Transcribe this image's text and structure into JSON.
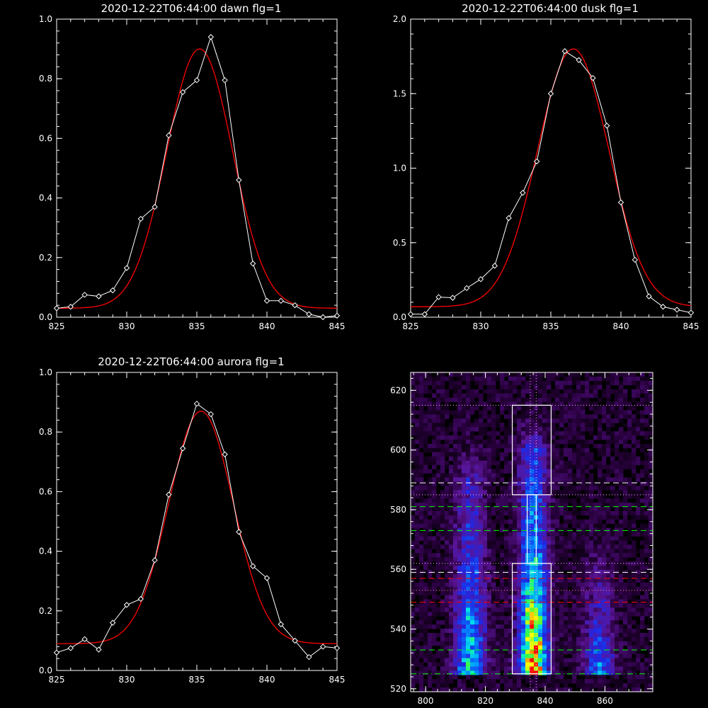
{
  "chart_data": [
    {
      "type": "line",
      "title": "2020-12-22T06:44:00 dawn flg=1",
      "xlim": [
        825,
        845
      ],
      "ylim": [
        0.0,
        1.0
      ],
      "xticks": [
        "825",
        "830",
        "835",
        "840",
        "845"
      ],
      "yticks": [
        "0.0",
        "0.2",
        "0.4",
        "0.6",
        "0.8",
        "1.0"
      ],
      "x": [
        825,
        826,
        827,
        828,
        829,
        830,
        831,
        832,
        833,
        834,
        835,
        836,
        837,
        838,
        839,
        840,
        841,
        842,
        843,
        844,
        845
      ],
      "series": [
        {
          "color": "#ffffff",
          "marker": "diamond",
          "values": [
            0.03,
            0.035,
            0.075,
            0.07,
            0.09,
            0.165,
            0.33,
            0.37,
            0.61,
            0.755,
            0.795,
            0.94,
            0.795,
            0.46,
            0.18,
            0.055,
            0.055,
            0.04,
            0.01,
            0.0,
            0.005
          ]
        },
        {
          "color": "#ff0000",
          "fit": "gaussian",
          "center": 835.2,
          "sigma": 2.35,
          "amplitude": 0.87,
          "baseline": 0.03
        }
      ]
    },
    {
      "type": "line",
      "title": "2020-12-22T06:44:00 dusk flg=1",
      "xlim": [
        825,
        845
      ],
      "ylim": [
        0.0,
        2.0
      ],
      "xticks": [
        "825",
        "830",
        "835",
        "840",
        "845"
      ],
      "yticks": [
        "0.0",
        "0.5",
        "1.0",
        "1.5",
        "2.0"
      ],
      "x": [
        825,
        826,
        827,
        828,
        829,
        830,
        831,
        832,
        833,
        834,
        835,
        836,
        837,
        838,
        839,
        840,
        841,
        842,
        843,
        844,
        845
      ],
      "series": [
        {
          "color": "#ffffff",
          "marker": "diamond",
          "values": [
            0.02,
            0.02,
            0.135,
            0.13,
            0.195,
            0.255,
            0.345,
            0.665,
            0.835,
            1.045,
            1.5,
            1.785,
            1.725,
            1.605,
            1.285,
            0.77,
            0.385,
            0.14,
            0.07,
            0.05,
            0.03
          ]
        },
        {
          "color": "#ff0000",
          "fit": "gaussian",
          "center": 836.6,
          "sigma": 2.55,
          "amplitude": 1.73,
          "baseline": 0.07
        }
      ]
    },
    {
      "type": "line",
      "title": "2020-12-22T06:44:00 aurora flg=1",
      "xlim": [
        825,
        845
      ],
      "ylim": [
        0.0,
        1.0
      ],
      "xticks": [
        "825",
        "830",
        "835",
        "840",
        "845"
      ],
      "yticks": [
        "0.0",
        "0.2",
        "0.4",
        "0.6",
        "0.8",
        "1.0"
      ],
      "x": [
        825,
        826,
        827,
        828,
        829,
        830,
        831,
        832,
        833,
        834,
        835,
        836,
        837,
        838,
        839,
        840,
        841,
        842,
        843,
        844,
        845
      ],
      "series": [
        {
          "color": "#ffffff",
          "marker": "diamond",
          "values": [
            0.06,
            0.075,
            0.105,
            0.07,
            0.16,
            0.22,
            0.24,
            0.37,
            0.59,
            0.745,
            0.895,
            0.86,
            0.725,
            0.465,
            0.35,
            0.31,
            0.155,
            0.1,
            0.045,
            0.08,
            0.075
          ]
        },
        {
          "color": "#ff0000",
          "fit": "gaussian",
          "center": 835.3,
          "sigma": 2.3,
          "amplitude": 0.78,
          "baseline": 0.09
        }
      ]
    },
    {
      "type": "heatmap",
      "xlim": [
        795,
        876
      ],
      "ylim": [
        519,
        626
      ],
      "xticks": [
        "800",
        "820",
        "840",
        "860"
      ],
      "yticks": [
        "520",
        "540",
        "560",
        "580",
        "600",
        "620"
      ],
      "colormap": "rainbow",
      "emission_columns": [
        {
          "x": 815,
          "y_from": 525,
          "y_to": 592,
          "peak": 0.62
        },
        {
          "x": 836,
          "y_from": 525,
          "y_to": 600,
          "peak": 1.0
        },
        {
          "x": 858,
          "y_from": 525,
          "y_to": 560,
          "peak": 0.45
        }
      ],
      "boxes": [
        {
          "x": [
            829,
            842
          ],
          "y": [
            525,
            562
          ],
          "color": "#ffffff"
        },
        {
          "x": [
            834,
            837
          ],
          "y": [
            562,
            585
          ],
          "color": "#ffffff"
        },
        {
          "x": [
            829,
            842
          ],
          "y": [
            585,
            615
          ],
          "color": "#ffffff"
        }
      ],
      "hlines": [
        {
          "y": 615,
          "style": "dotted",
          "color": "#ffb0ff"
        },
        {
          "y": 589,
          "style": "dashed",
          "color": "#ffffff"
        },
        {
          "y": 585,
          "style": "dotted",
          "color": "#ffb0ff"
        },
        {
          "y": 581,
          "style": "dashed",
          "color": "#00ff00"
        },
        {
          "y": 573,
          "style": "dashed",
          "color": "#00ff00"
        },
        {
          "y": 562,
          "style": "dotted",
          "color": "#ffb0ff"
        },
        {
          "y": 559,
          "style": "dashed",
          "color": "#ffffff"
        },
        {
          "y": 557,
          "style": "dashed",
          "color": "#ff0000"
        },
        {
          "y": 553,
          "style": "dotted",
          "color": "#ff8080"
        },
        {
          "y": 549,
          "style": "dashed",
          "color": "#ff0000"
        },
        {
          "y": 533,
          "style": "dashed",
          "color": "#00ff00"
        },
        {
          "y": 525,
          "style": "dashdot",
          "color": "#00ff00"
        }
      ],
      "vlines": [
        {
          "x": 835,
          "style": "dotted",
          "color": "#ffb0ff"
        },
        {
          "x": 837,
          "style": "dotted",
          "color": "#ffb0ff"
        }
      ]
    }
  ]
}
